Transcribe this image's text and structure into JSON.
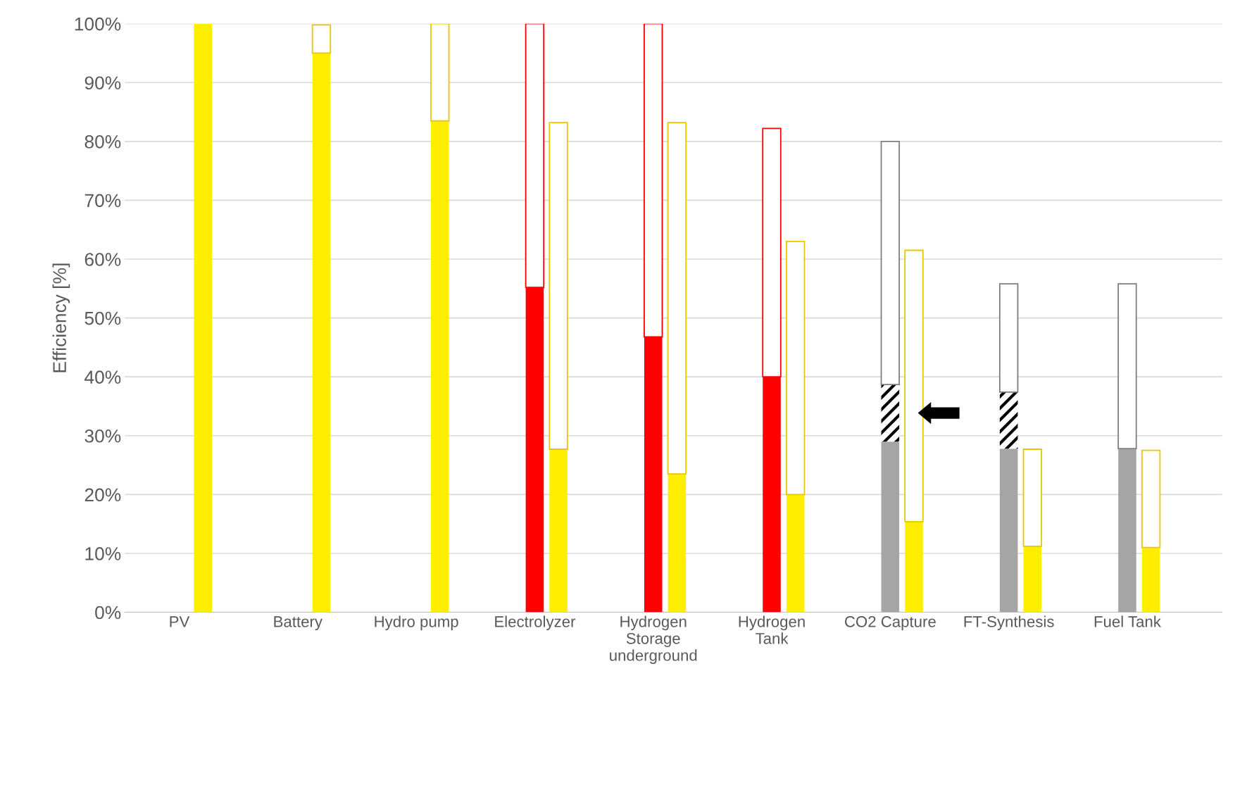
{
  "chart_data": {
    "type": "bar",
    "stacked": true,
    "ylabel": "Efficiency [%]",
    "categories": [
      "PV",
      null,
      null,
      null,
      null,
      "Battery",
      null,
      null,
      null,
      null,
      "Hydro pump",
      null,
      null,
      null,
      null,
      "Electrolyzer",
      null,
      null,
      null,
      null,
      "Hydrogen\nStorage\nunderground",
      null,
      null,
      null,
      null,
      "Hydrogen\nTank",
      null,
      null,
      null,
      null,
      "CO2 Capture",
      null,
      null,
      null,
      null,
      "FT-Synthesis",
      null,
      null,
      null,
      null,
      "Fuel Tank",
      null,
      null,
      null,
      null
    ],
    "ylim": [
      0,
      100
    ],
    "yticks": [
      {
        "value": 0,
        "label": "0%"
      },
      {
        "value": 10,
        "label": "10%"
      },
      {
        "value": 20,
        "label": "20%"
      },
      {
        "value": 30,
        "label": "30%"
      },
      {
        "value": 40,
        "label": "40%"
      },
      {
        "value": 50,
        "label": "50%"
      },
      {
        "value": 60,
        "label": "60%"
      },
      {
        "value": 70,
        "label": "70%"
      },
      {
        "value": 80,
        "label": "80%"
      },
      {
        "value": 90,
        "label": "90%"
      },
      {
        "value": 100,
        "label": "100%"
      }
    ],
    "grid": "y",
    "legend": false,
    "series": [
      {
        "colors": [
          "#ff0000",
          "#ffee00",
          "#ffee00",
          "#ffee00",
          "#ffee00",
          "#ff0000",
          "#ffee00",
          "#ffee00",
          "#ffee00",
          "#ffee00",
          "#ff0000",
          "#ffee00",
          "#ffee00",
          "#ffee00",
          "#ffee00",
          "#ff0000",
          "#ffee00",
          "#ffee00",
          "#ffee00",
          "#ffee00",
          "#ff0000",
          "#ffee00",
          "#ffee00",
          "#ffee00",
          "#ffee00",
          "#ff0000",
          "#ffee00",
          "#ffee00",
          "#ffee00",
          "#ffee00",
          "#a5a5a5",
          "#ffee00",
          "#ffee00",
          "#ffee00",
          "#ffee00",
          "#a5a5a5",
          "#ffee00",
          "#ffee00",
          "#ffee00",
          "#ffee00",
          "#a5a5a5",
          "#ffee00",
          "#ffee00",
          "#ffee00",
          "#ffee00"
        ],
        "values": [
          null,
          100,
          null,
          null,
          null,
          null,
          95.0,
          null,
          null,
          null,
          null,
          83.5,
          null,
          null,
          null,
          55.2,
          27.7,
          null,
          null,
          null,
          46.8,
          23.5,
          null,
          null,
          null,
          40.0,
          20.0,
          null,
          null,
          null,
          29.0,
          15.4,
          null,
          null,
          null,
          27.8,
          11.2,
          null,
          null,
          null,
          27.8,
          11.0,
          null,
          null,
          null
        ]
      },
      {
        "color": "#000000",
        "values": [
          null,
          null,
          null,
          null,
          null,
          null,
          null,
          null,
          null,
          null,
          null,
          null,
          null,
          null,
          null,
          null,
          null,
          null,
          null,
          null,
          null,
          null,
          null,
          null,
          null,
          null,
          null,
          null,
          null,
          null,
          9.7,
          null,
          null,
          null,
          null,
          9.6,
          null,
          null,
          null,
          null,
          null,
          null,
          null,
          null,
          null
        ]
      },
      {
        "color": "#ffffff",
        "values": [
          null,
          null,
          null,
          null,
          null,
          null,
          4.8,
          null,
          null,
          null,
          null,
          16.5,
          null,
          null,
          null,
          44.8,
          55.5,
          null,
          null,
          null,
          53.2,
          59.7,
          null,
          null,
          null,
          42.2,
          43.0,
          null,
          null,
          null,
          41.3,
          46.1,
          null,
          null,
          null,
          18.4,
          16.5,
          null,
          null,
          null,
          28.0,
          16.5,
          null,
          null,
          null
        ]
      }
    ]
  }
}
